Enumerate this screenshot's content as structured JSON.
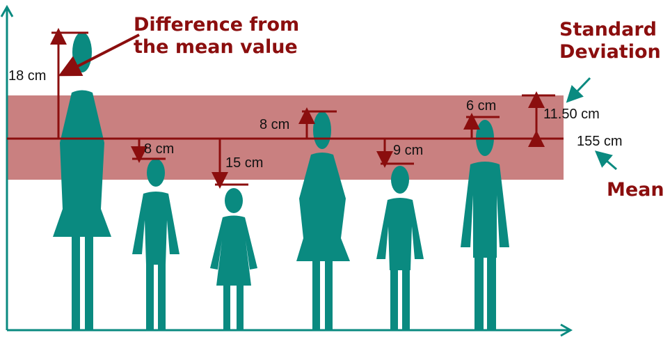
{
  "colors": {
    "figure": "#0a8a80",
    "dark_red": "#8b0e0e",
    "band": "#c98080",
    "axis": "#0a8a80"
  },
  "annotations": {
    "difference_line1": "Difference from",
    "difference_line2": "the mean value",
    "sd_line1": "Standard",
    "sd_line2": "Deviation",
    "mean": "Mean"
  },
  "values": {
    "mean_label": "155 cm",
    "sd_label": "11.50 cm"
  },
  "people": [
    {
      "type": "woman",
      "diff_label": "18 cm"
    },
    {
      "type": "boy",
      "diff_label": "8 cm"
    },
    {
      "type": "girl",
      "diff_label": "15 cm"
    },
    {
      "type": "woman",
      "diff_label": "8 cm"
    },
    {
      "type": "boy",
      "diff_label": "9 cm"
    },
    {
      "type": "man",
      "diff_label": "6 cm"
    }
  ]
}
